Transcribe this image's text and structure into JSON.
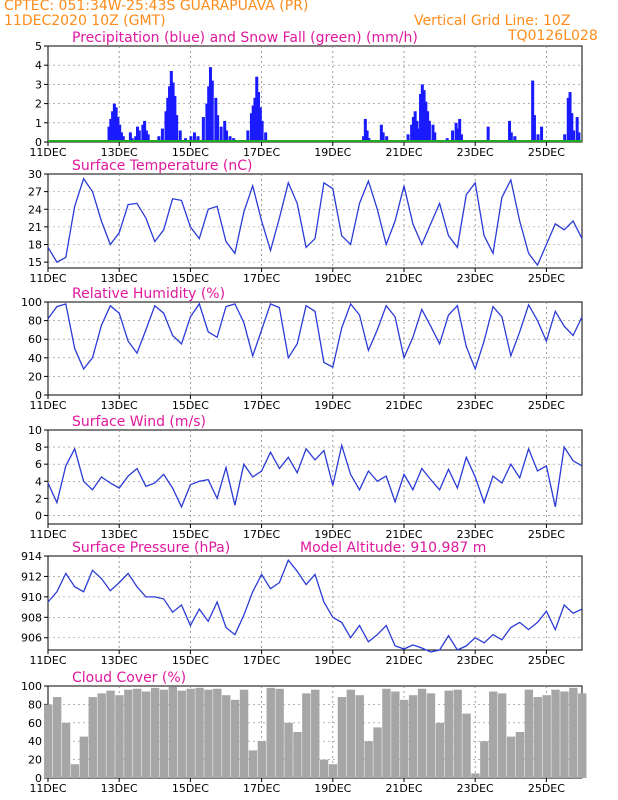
{
  "header": {
    "line1": "CPTEC:  051:34W-25:43S  GUARAPUAVA (PR)",
    "line2_left": "11DEC2020 10Z (GMT)",
    "line2_right": "Vertical Grid Line: 10Z",
    "line3_right": "TQ0126L028"
  },
  "colors": {
    "header": "#ff8c1a",
    "title": "#e0199e",
    "precip": "#1a1aff",
    "snow": "#22aa22",
    "line": "#2b3bd6",
    "cloud": "#a6a6a6"
  },
  "x_axis": {
    "ticks": [
      "11DEC",
      "13DEC",
      "15DEC",
      "17DEC",
      "19DEC",
      "21DEC",
      "23DEC",
      "25DEC"
    ]
  },
  "panels": [
    {
      "id": "precip",
      "title": "Precipitation (blue) and Snow Fall (green) (mm/h)"
    },
    {
      "id": "temp",
      "title": "Surface Temperature (nC)"
    },
    {
      "id": "rh",
      "title": "Relative Humidity (%)"
    },
    {
      "id": "wind",
      "title": "Surface Wind (m/s)"
    },
    {
      "id": "pres",
      "title": "Surface Pressure (hPa)",
      "extra": "Model Altitude: 910.987 m"
    },
    {
      "id": "cloud",
      "title": "Cloud Cover (%)"
    }
  ],
  "chart_data": [
    {
      "type": "bar",
      "title": "Precipitation (blue) and Snow Fall (green) (mm/h)",
      "x_unit": "days since 11DEC2020 10Z",
      "ylim": [
        0,
        5
      ],
      "yticks": [
        0,
        1,
        2,
        3,
        4,
        5
      ],
      "series": [
        {
          "name": "Precipitation",
          "points": [
            [
              1.7,
              0.8
            ],
            [
              1.75,
              1.2
            ],
            [
              1.8,
              1.6
            ],
            [
              1.85,
              2.0
            ],
            [
              1.9,
              1.8
            ],
            [
              1.95,
              1.3
            ],
            [
              2.0,
              0.9
            ],
            [
              2.05,
              0.5
            ],
            [
              2.1,
              0.3
            ],
            [
              2.2,
              0.1
            ],
            [
              2.3,
              0.5
            ],
            [
              2.35,
              0.2
            ],
            [
              2.45,
              0.3
            ],
            [
              2.5,
              0.8
            ],
            [
              2.55,
              0.6
            ],
            [
              2.65,
              0.9
            ],
            [
              2.7,
              1.1
            ],
            [
              2.75,
              0.6
            ],
            [
              2.8,
              0.4
            ],
            [
              3.1,
              0.3
            ],
            [
              3.2,
              0.7
            ],
            [
              3.3,
              1.6
            ],
            [
              3.35,
              2.3
            ],
            [
              3.4,
              2.9
            ],
            [
              3.45,
              3.7
            ],
            [
              3.5,
              3.1
            ],
            [
              3.55,
              2.4
            ],
            [
              3.6,
              1.4
            ],
            [
              3.7,
              0.6
            ],
            [
              3.85,
              0.2
            ],
            [
              4.0,
              0.3
            ],
            [
              4.1,
              0.5
            ],
            [
              4.2,
              0.3
            ],
            [
              4.35,
              1.3
            ],
            [
              4.45,
              2.0
            ],
            [
              4.5,
              2.9
            ],
            [
              4.55,
              3.9
            ],
            [
              4.6,
              3.2
            ],
            [
              4.7,
              2.3
            ],
            [
              4.75,
              1.4
            ],
            [
              4.85,
              0.8
            ],
            [
              4.95,
              1.1
            ],
            [
              5.0,
              0.6
            ],
            [
              5.1,
              0.3
            ],
            [
              5.2,
              0.2
            ],
            [
              5.6,
              0.6
            ],
            [
              5.7,
              1.5
            ],
            [
              5.75,
              1.9
            ],
            [
              5.8,
              2.3
            ],
            [
              5.85,
              3.4
            ],
            [
              5.9,
              2.6
            ],
            [
              5.95,
              1.8
            ],
            [
              6.0,
              1.1
            ],
            [
              6.1,
              0.5
            ],
            [
              8.85,
              0.3
            ],
            [
              8.9,
              1.2
            ],
            [
              8.95,
              0.6
            ],
            [
              9.0,
              0.2
            ],
            [
              9.35,
              0.9
            ],
            [
              9.4,
              0.5
            ],
            [
              9.5,
              0.3
            ],
            [
              9.6,
              0.1
            ],
            [
              10.1,
              0.4
            ],
            [
              10.2,
              0.9
            ],
            [
              10.25,
              1.3
            ],
            [
              10.3,
              1.6
            ],
            [
              10.35,
              1.1
            ],
            [
              10.4,
              0.7
            ],
            [
              10.45,
              2.5
            ],
            [
              10.5,
              3.0
            ],
            [
              10.55,
              2.7
            ],
            [
              10.6,
              2.1
            ],
            [
              10.65,
              1.6
            ],
            [
              10.7,
              1.1
            ],
            [
              10.8,
              0.9
            ],
            [
              10.85,
              0.5
            ],
            [
              11.2,
              0.2
            ],
            [
              11.35,
              0.6
            ],
            [
              11.45,
              1.0
            ],
            [
              11.5,
              0.7
            ],
            [
              11.55,
              1.2
            ],
            [
              11.6,
              0.4
            ],
            [
              12.35,
              0.8
            ],
            [
              12.95,
              1.1
            ],
            [
              13.0,
              0.5
            ],
            [
              13.1,
              0.3
            ],
            [
              13.6,
              3.2
            ],
            [
              13.65,
              1.4
            ],
            [
              13.75,
              0.4
            ],
            [
              13.85,
              0.8
            ],
            [
              14.5,
              0.4
            ],
            [
              14.6,
              2.3
            ],
            [
              14.65,
              2.6
            ],
            [
              14.7,
              1.5
            ],
            [
              14.75,
              0.6
            ],
            [
              14.85,
              1.3
            ],
            [
              14.9,
              0.5
            ]
          ]
        },
        {
          "name": "Snow Fall",
          "points": []
        }
      ]
    },
    {
      "type": "line",
      "title": "Surface Temperature (nC)",
      "x_unit": "days since 11DEC2020 10Z",
      "ylim": [
        14,
        30
      ],
      "yticks": [
        15,
        18,
        21,
        24,
        27,
        30
      ],
      "x": [
        0,
        0.25,
        0.5,
        0.75,
        1,
        1.25,
        1.5,
        1.75,
        2,
        2.25,
        2.5,
        2.75,
        3,
        3.25,
        3.5,
        3.75,
        4,
        4.25,
        4.5,
        4.75,
        5,
        5.25,
        5.5,
        5.75,
        6,
        6.25,
        6.5,
        6.75,
        7,
        7.25,
        7.5,
        7.75,
        8,
        8.25,
        8.5,
        8.75,
        9,
        9.25,
        9.5,
        9.75,
        10,
        10.25,
        10.5,
        10.75,
        11,
        11.25,
        11.5,
        11.75,
        12,
        12.25,
        12.5,
        12.75,
        13,
        13.25,
        13.5,
        13.75,
        14,
        14.25,
        14.5,
        14.75,
        15
      ],
      "values": [
        17.5,
        15.0,
        15.8,
        24.5,
        29.2,
        27.0,
        22.0,
        18.0,
        20.0,
        24.8,
        25.0,
        22.5,
        18.5,
        20.5,
        25.8,
        25.5,
        21.0,
        19.0,
        24.0,
        24.5,
        18.5,
        16.5,
        23.5,
        28.0,
        22.0,
        17.0,
        22.5,
        28.5,
        25.0,
        17.5,
        19.0,
        28.5,
        27.5,
        19.5,
        18.0,
        25.0,
        28.8,
        24.0,
        18.0,
        22.0,
        28.0,
        21.5,
        18.0,
        21.5,
        25.0,
        19.5,
        17.5,
        26.5,
        28.5,
        19.5,
        16.5,
        26.0,
        29.0,
        22.0,
        16.5,
        14.5,
        18.0,
        21.5,
        20.5,
        22.0,
        19.0
      ]
    },
    {
      "type": "line",
      "title": "Relative Humidity (%)",
      "x_unit": "days since 11DEC2020 10Z",
      "ylim": [
        0,
        100
      ],
      "yticks": [
        0,
        20,
        40,
        60,
        80,
        100
      ],
      "x": [
        0,
        0.25,
        0.5,
        0.75,
        1,
        1.25,
        1.5,
        1.75,
        2,
        2.25,
        2.5,
        2.75,
        3,
        3.25,
        3.5,
        3.75,
        4,
        4.25,
        4.5,
        4.75,
        5,
        5.25,
        5.5,
        5.75,
        6,
        6.25,
        6.5,
        6.75,
        7,
        7.25,
        7.5,
        7.75,
        8,
        8.25,
        8.5,
        8.75,
        9,
        9.25,
        9.5,
        9.75,
        10,
        10.25,
        10.5,
        10.75,
        11,
        11.25,
        11.5,
        11.75,
        12,
        12.25,
        12.5,
        12.75,
        13,
        13.25,
        13.5,
        13.75,
        14,
        14.25,
        14.5,
        14.75,
        15
      ],
      "values": [
        82,
        95,
        98,
        50,
        28,
        40,
        75,
        96,
        88,
        58,
        45,
        70,
        96,
        88,
        64,
        55,
        84,
        98,
        68,
        62,
        95,
        98,
        78,
        42,
        70,
        98,
        94,
        40,
        55,
        96,
        90,
        35,
        30,
        72,
        98,
        86,
        48,
        70,
        96,
        84,
        40,
        62,
        92,
        74,
        55,
        86,
        96,
        52,
        28,
        58,
        95,
        84,
        42,
        68,
        97,
        80,
        58,
        90,
        74,
        64,
        84
      ]
    },
    {
      "type": "line",
      "title": "Surface Wind (m/s)",
      "x_unit": "days since 11DEC2020 10Z",
      "ylim": [
        -1,
        10
      ],
      "yticks": [
        0,
        2,
        4,
        6,
        8,
        10
      ],
      "x": [
        0,
        0.25,
        0.5,
        0.75,
        1,
        1.25,
        1.5,
        1.75,
        2,
        2.25,
        2.5,
        2.75,
        3,
        3.25,
        3.5,
        3.75,
        4,
        4.25,
        4.5,
        4.75,
        5,
        5.25,
        5.5,
        5.75,
        6,
        6.25,
        6.5,
        6.75,
        7,
        7.25,
        7.5,
        7.75,
        8,
        8.25,
        8.5,
        8.75,
        9,
        9.25,
        9.5,
        9.75,
        10,
        10.25,
        10.5,
        10.75,
        11,
        11.25,
        11.5,
        11.75,
        12,
        12.25,
        12.5,
        12.75,
        13,
        13.25,
        13.5,
        13.75,
        14,
        14.25,
        14.5,
        14.75,
        15
      ],
      "values": [
        3.8,
        1.5,
        5.8,
        7.8,
        4.0,
        3.0,
        4.5,
        3.8,
        3.2,
        4.6,
        5.5,
        3.4,
        3.8,
        4.8,
        3.2,
        1.0,
        3.6,
        4.0,
        4.2,
        2.0,
        5.6,
        1.2,
        6.0,
        4.5,
        5.2,
        7.4,
        5.5,
        6.8,
        5.0,
        7.8,
        6.5,
        7.6,
        3.5,
        8.2,
        4.8,
        3.0,
        5.2,
        4.0,
        4.6,
        1.6,
        4.8,
        3.0,
        5.5,
        4.2,
        3.0,
        5.4,
        3.2,
        6.8,
        4.5,
        1.5,
        4.6,
        3.8,
        6.0,
        4.4,
        7.8,
        5.2,
        5.8,
        1.0,
        8.0,
        6.4,
        5.8
      ]
    },
    {
      "type": "line",
      "title": "Surface Pressure (hPa)",
      "x_unit": "days since 11DEC2020 10Z",
      "ylim": [
        904.8,
        914
      ],
      "yticks": [
        906,
        908,
        910,
        912,
        914
      ],
      "x": [
        0,
        0.25,
        0.5,
        0.75,
        1,
        1.25,
        1.5,
        1.75,
        2,
        2.25,
        2.5,
        2.75,
        3,
        3.25,
        3.5,
        3.75,
        4,
        4.25,
        4.5,
        4.75,
        5,
        5.25,
        5.5,
        5.75,
        6,
        6.25,
        6.5,
        6.75,
        7,
        7.25,
        7.5,
        7.75,
        8,
        8.25,
        8.5,
        8.75,
        9,
        9.25,
        9.5,
        9.75,
        10,
        10.25,
        10.5,
        10.75,
        11,
        11.25,
        11.5,
        11.75,
        12,
        12.25,
        12.5,
        12.75,
        13,
        13.25,
        13.5,
        13.75,
        14,
        14.25,
        14.5,
        14.75,
        15
      ],
      "values": [
        909.5,
        910.5,
        912.3,
        911.0,
        910.5,
        912.6,
        911.8,
        910.6,
        911.4,
        912.3,
        911.0,
        910.0,
        910.0,
        909.8,
        908.5,
        909.2,
        907.2,
        908.8,
        907.6,
        909.5,
        907.0,
        906.3,
        908.2,
        910.5,
        912.2,
        910.8,
        911.4,
        913.6,
        912.5,
        911.2,
        912.2,
        909.5,
        908.0,
        907.5,
        906.0,
        907.2,
        905.6,
        906.3,
        907.2,
        905.2,
        904.9,
        905.3,
        905.0,
        904.6,
        904.8,
        906.2,
        904.8,
        905.2,
        906.0,
        905.5,
        906.3,
        905.8,
        907.0,
        907.5,
        906.8,
        907.5,
        908.6,
        906.8,
        909.2,
        908.4,
        908.8
      ]
    },
    {
      "type": "bar",
      "title": "Cloud Cover (%)",
      "x_unit": "days since 11DEC2020 10Z",
      "ylim": [
        0,
        100
      ],
      "yticks": [
        0,
        20,
        40,
        60,
        80,
        100
      ],
      "x": [
        0,
        0.25,
        0.5,
        0.75,
        1,
        1.25,
        1.5,
        1.75,
        2,
        2.25,
        2.5,
        2.75,
        3,
        3.25,
        3.5,
        3.75,
        4,
        4.25,
        4.5,
        4.75,
        5,
        5.25,
        5.5,
        5.75,
        6,
        6.25,
        6.5,
        6.75,
        7,
        7.25,
        7.5,
        7.75,
        8,
        8.25,
        8.5,
        8.75,
        9,
        9.25,
        9.5,
        9.75,
        10,
        10.25,
        10.5,
        10.75,
        11,
        11.25,
        11.5,
        11.75,
        12,
        12.25,
        12.5,
        12.75,
        13,
        13.25,
        13.5,
        13.75,
        14,
        14.25,
        14.5,
        14.75,
        15
      ],
      "values": [
        80,
        88,
        60,
        15,
        45,
        88,
        92,
        95,
        90,
        96,
        97,
        94,
        98,
        96,
        99,
        95,
        97,
        98,
        96,
        97,
        90,
        85,
        96,
        30,
        40,
        98,
        97,
        60,
        50,
        92,
        96,
        20,
        15,
        88,
        96,
        90,
        40,
        55,
        97,
        94,
        85,
        90,
        97,
        92,
        60,
        95,
        96,
        70,
        5,
        40,
        94,
        92,
        45,
        50,
        96,
        88,
        90,
        96,
        94,
        98,
        92
      ]
    }
  ]
}
